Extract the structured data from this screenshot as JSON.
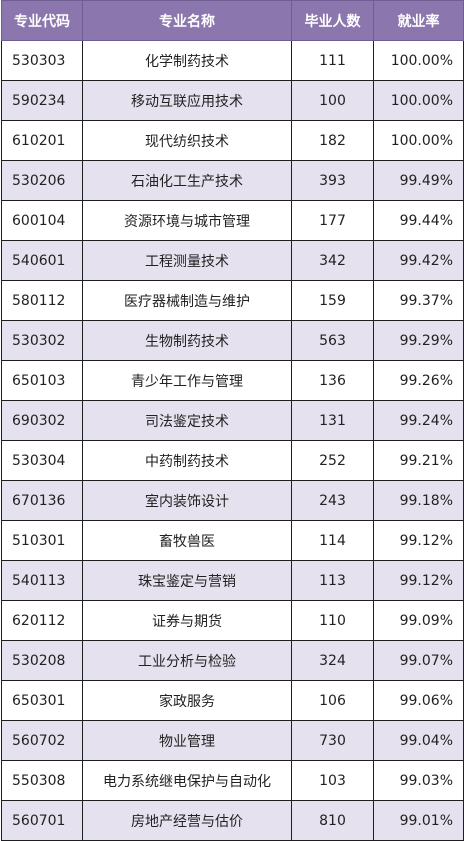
{
  "table": {
    "headers": [
      "专业代码",
      "专业名称",
      "毕业人数",
      "就业率"
    ],
    "rows": [
      {
        "code": "530303",
        "name": "化学制药技术",
        "graduates": "111",
        "rate": "100.00%"
      },
      {
        "code": "590234",
        "name": "移动互联应用技术",
        "graduates": "100",
        "rate": "100.00%"
      },
      {
        "code": "610201",
        "name": "现代纺织技术",
        "graduates": "182",
        "rate": "100.00%"
      },
      {
        "code": "530206",
        "name": "石油化工生产技术",
        "graduates": "393",
        "rate": "99.49%"
      },
      {
        "code": "600104",
        "name": "资源环境与城市管理",
        "graduates": "177",
        "rate": "99.44%"
      },
      {
        "code": "540601",
        "name": "工程测量技术",
        "graduates": "342",
        "rate": "99.42%"
      },
      {
        "code": "580112",
        "name": "医疗器械制造与维护",
        "graduates": "159",
        "rate": "99.37%"
      },
      {
        "code": "530302",
        "name": "生物制药技术",
        "graduates": "563",
        "rate": "99.29%"
      },
      {
        "code": "650103",
        "name": "青少年工作与管理",
        "graduates": "136",
        "rate": "99.26%"
      },
      {
        "code": "690302",
        "name": "司法鉴定技术",
        "graduates": "131",
        "rate": "99.24%"
      },
      {
        "code": "530304",
        "name": "中药制药技术",
        "graduates": "252",
        "rate": "99.21%"
      },
      {
        "code": "670136",
        "name": "室内装饰设计",
        "graduates": "243",
        "rate": "99.18%"
      },
      {
        "code": "510301",
        "name": "畜牧兽医",
        "graduates": "114",
        "rate": "99.12%"
      },
      {
        "code": "540113",
        "name": "珠宝鉴定与营销",
        "graduates": "113",
        "rate": "99.12%"
      },
      {
        "code": "620112",
        "name": "证券与期货",
        "graduates": "110",
        "rate": "99.09%"
      },
      {
        "code": "530208",
        "name": "工业分析与检验",
        "graduates": "324",
        "rate": "99.07%"
      },
      {
        "code": "650301",
        "name": "家政服务",
        "graduates": "106",
        "rate": "99.06%"
      },
      {
        "code": "560702",
        "name": "物业管理",
        "graduates": "730",
        "rate": "99.04%"
      },
      {
        "code": "550308",
        "name": "电力系统继电保护与自动化",
        "graduates": "103",
        "rate": "99.03%"
      },
      {
        "code": "560701",
        "name": "房地产经营与估价",
        "graduates": "810",
        "rate": "99.01%"
      }
    ]
  }
}
